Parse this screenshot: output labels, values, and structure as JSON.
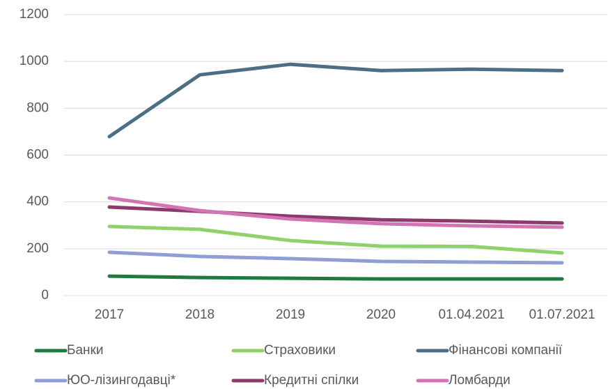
{
  "chart_data": {
    "type": "line",
    "categories": [
      "2017",
      "2018",
      "2019",
      "2020",
      "01.04.2021",
      "01.07.2021"
    ],
    "series": [
      {
        "name": "Банки",
        "color": "#1e7a3e",
        "values": [
          83,
          77,
          74,
          71,
          71,
          71
        ]
      },
      {
        "name": "Страховики",
        "color": "#8fd16a",
        "values": [
          295,
          283,
          235,
          211,
          210,
          182
        ]
      },
      {
        "name": "Фінансові компанії",
        "color": "#4d6f86",
        "values": [
          679,
          943,
          988,
          961,
          967,
          961
        ]
      },
      {
        "name": "ЮО-лізингодавці*",
        "color": "#8f9fd4",
        "values": [
          185,
          167,
          158,
          146,
          143,
          140
        ]
      },
      {
        "name": "Кредитні спілки",
        "color": "#8b3a6b",
        "values": [
          378,
          360,
          339,
          324,
          318,
          310
        ]
      },
      {
        "name": "Ломбарди",
        "color": "#d374b4",
        "values": [
          417,
          363,
          327,
          307,
          298,
          292
        ]
      }
    ],
    "ylim": [
      0,
      1200
    ],
    "yticks": [
      0,
      200,
      400,
      600,
      800,
      1000,
      1200
    ],
    "grid": true,
    "legend": "bottom"
  }
}
